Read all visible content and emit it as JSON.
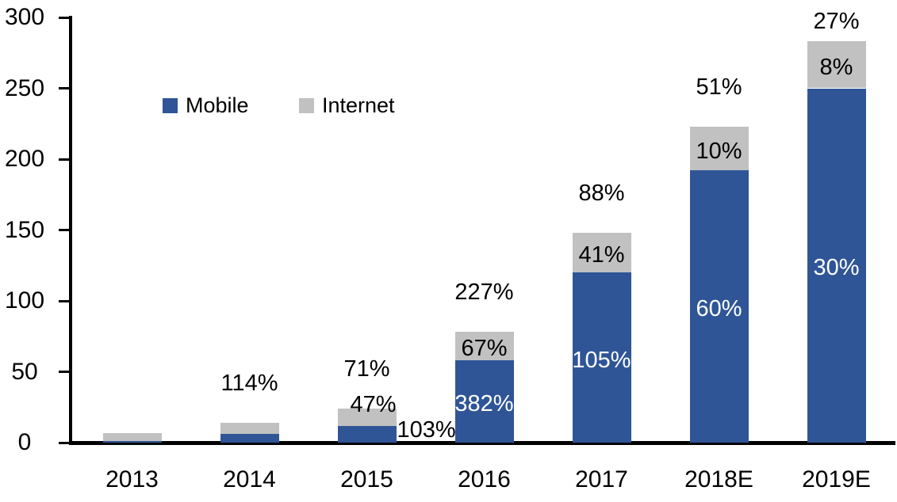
{
  "chart_data": {
    "type": "bar",
    "stacked": true,
    "title": "",
    "categories": [
      "2013",
      "2014",
      "2015",
      "2016",
      "2017",
      "2018E",
      "2019E"
    ],
    "series": [
      {
        "name": "Mobile",
        "color": "#2F5597",
        "values": [
          1,
          6,
          12,
          58,
          120,
          192,
          250
        ],
        "growth_labels": [
          "",
          "",
          "103%",
          "382%",
          "105%",
          "60%",
          "30%"
        ],
        "inside_label_color": "#FFFFFF"
      },
      {
        "name": "Internet",
        "color": "#C1C1C1",
        "values": [
          5.5,
          8,
          12,
          20,
          28,
          31,
          33
        ],
        "growth_labels": [
          "",
          "",
          "47%",
          "67%",
          "41%",
          "10%",
          "8%"
        ],
        "inside_label_color": "#000000"
      }
    ],
    "total_growth_labels": [
      "",
      "114%",
      "71%",
      "227%",
      "88%",
      "51%",
      "27%"
    ],
    "xlabel": "",
    "ylabel": "",
    "ylim": [
      0,
      300
    ],
    "yticks": [
      "0",
      "50",
      "100",
      "150",
      "200",
      "250",
      "300"
    ],
    "grid": false,
    "legend": {
      "position": "top-left-inside",
      "items": [
        "Mobile",
        "Internet"
      ]
    },
    "axis_color": "#000000",
    "label_color": "#000000",
    "background": "#FFFFFF"
  }
}
